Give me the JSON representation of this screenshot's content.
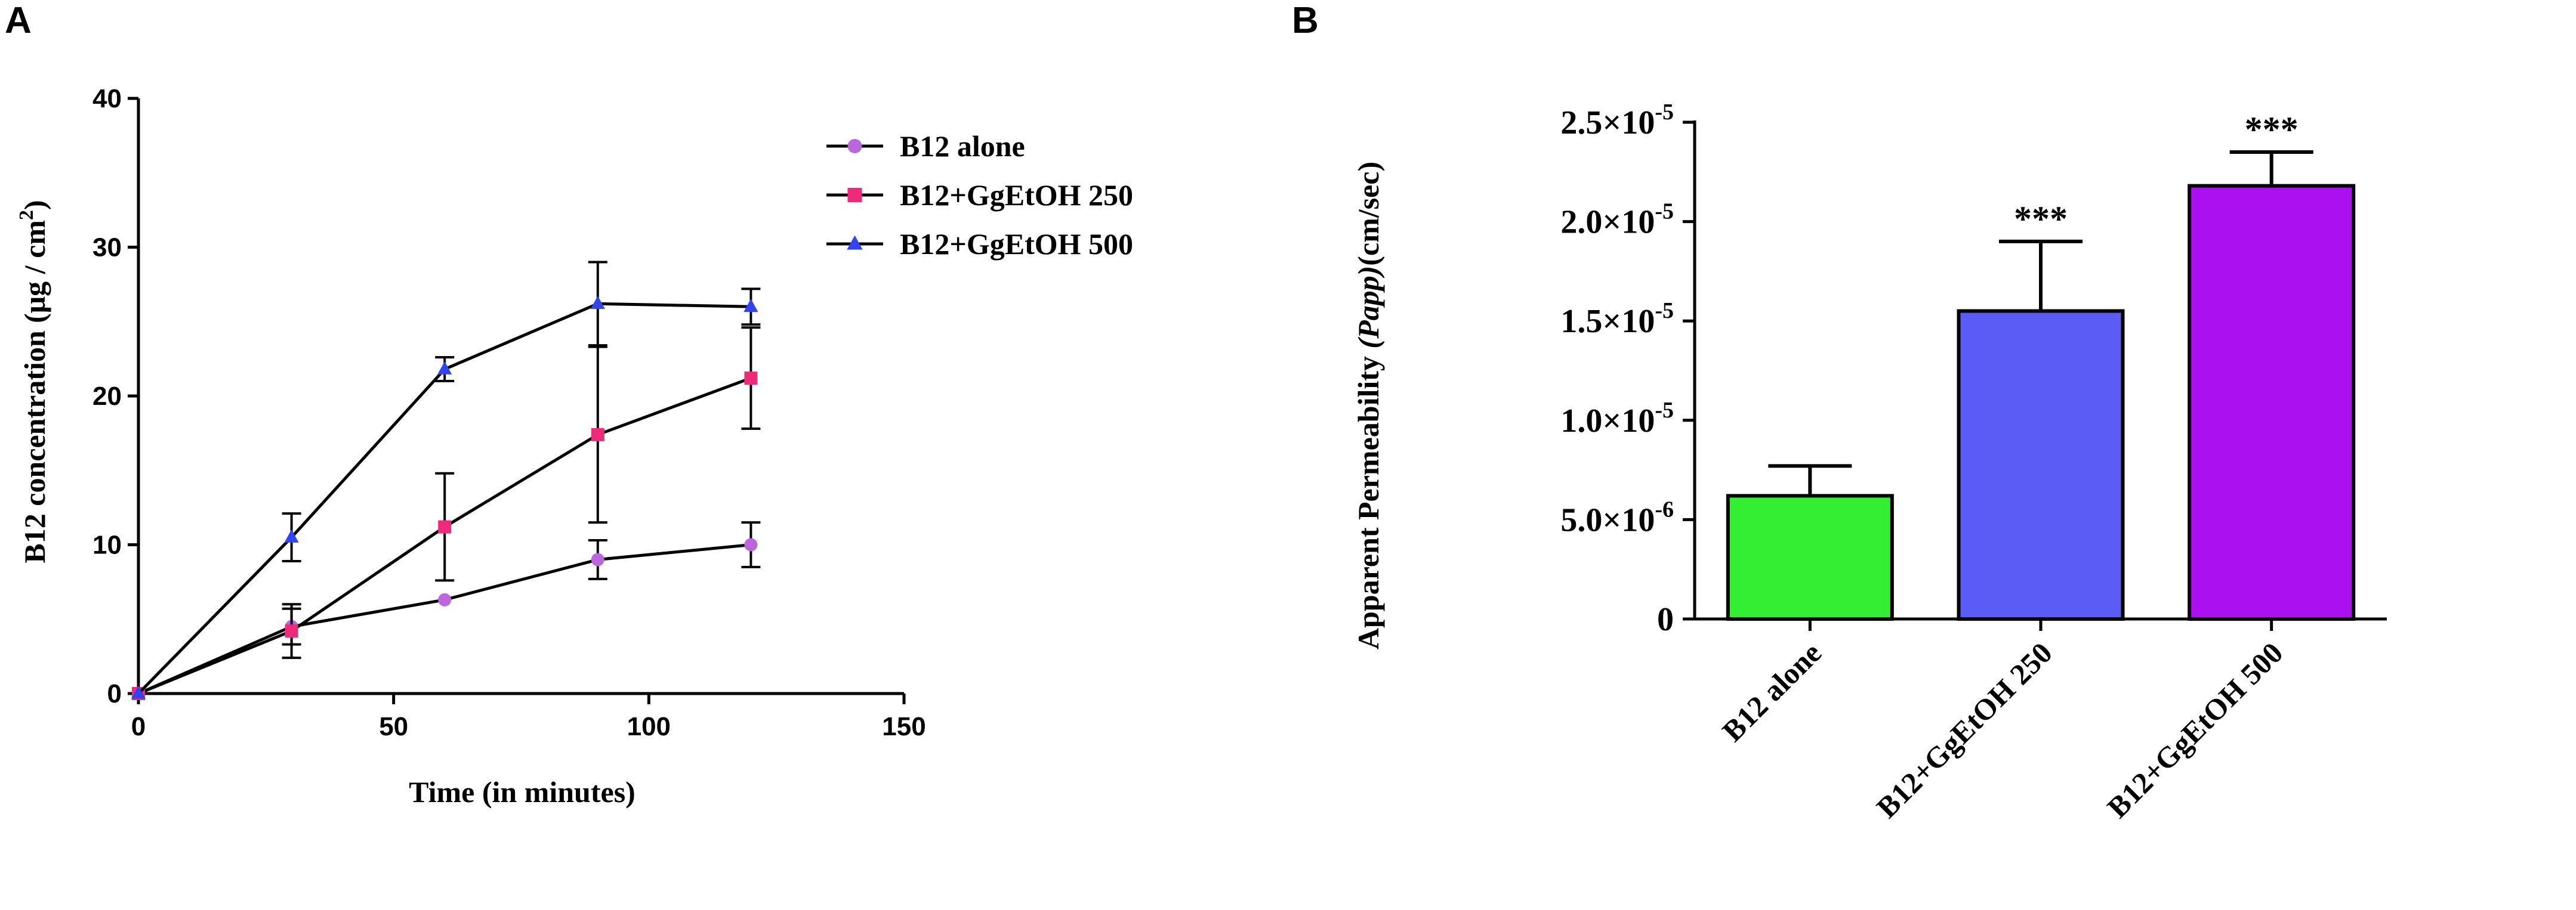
{
  "chart_data": [
    {
      "panel_label": "A",
      "type": "line",
      "xlabel": "Time (in minutes)",
      "ylabel": {
        "prefix": "B12 concentration (",
        "mu": "μ",
        "rest": "g / cm",
        "sup": "2",
        "suffix": ")"
      },
      "xlim": [
        0,
        150
      ],
      "ylim": [
        0,
        40
      ],
      "xticks": [
        "0",
        "50",
        "100",
        "150"
      ],
      "yticks": [
        "0",
        "10",
        "20",
        "30",
        "40"
      ],
      "grid": false,
      "legend_position": "right",
      "series": [
        {
          "name": "B12 alone",
          "color": "#bb66dd",
          "marker": "circle",
          "x": [
            0,
            30,
            60,
            90,
            120
          ],
          "y": [
            0,
            4.5,
            6.3,
            9.0,
            10.0
          ],
          "err": [
            0,
            1.2,
            0,
            1.3,
            1.5
          ]
        },
        {
          "name": "B12+GgEtOH 250",
          "color": "#ee2a7b",
          "marker": "square",
          "x": [
            0,
            30,
            60,
            90,
            120
          ],
          "y": [
            0,
            4.2,
            11.2,
            17.4,
            21.2
          ],
          "err": [
            0,
            1.8,
            3.6,
            5.9,
            3.4
          ]
        },
        {
          "name": "B12+GgEtOH 500",
          "color": "#3344ee",
          "marker": "triangle",
          "x": [
            0,
            30,
            60,
            90,
            120
          ],
          "y": [
            0,
            10.5,
            21.8,
            26.2,
            26.0
          ],
          "err": [
            0,
            1.6,
            0.8,
            2.8,
            1.2
          ]
        }
      ]
    },
    {
      "panel_label": "B",
      "type": "bar",
      "ylabel": {
        "prefix": "Apparent Permeability ",
        "italic": "(Papp)",
        "suffix": "(cm/sec)"
      },
      "categories": [
        "B12 alone",
        "B12+GgEtOH 250",
        "B12+GgEtOH 500"
      ],
      "values": [
        6.2e-06,
        1.55e-05,
        2.18e-05
      ],
      "errors": [
        1.5e-06,
        3.5e-06,
        1.7e-06
      ],
      "colors": [
        "#33ee33",
        "#5a5cf5",
        "#aa11ee"
      ],
      "significance": [
        "",
        "***",
        "***"
      ],
      "ylim": [
        0,
        2.5e-05
      ],
      "yticks": [
        {
          "value": 0,
          "mantissa": "0",
          "exp": ""
        },
        {
          "value": 5e-06,
          "mantissa": "5.0×10",
          "exp": "-6"
        },
        {
          "value": 1e-05,
          "mantissa": "1.0×10",
          "exp": "-5"
        },
        {
          "value": 1.5e-05,
          "mantissa": "1.5×10",
          "exp": "-5"
        },
        {
          "value": 2e-05,
          "mantissa": "2.0×10",
          "exp": "-5"
        },
        {
          "value": 2.5e-05,
          "mantissa": "2.5×10",
          "exp": "-5"
        }
      ],
      "grid": false
    }
  ]
}
